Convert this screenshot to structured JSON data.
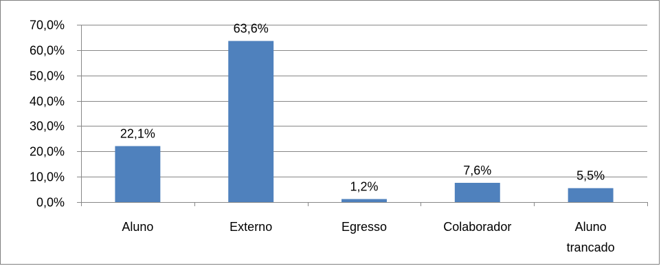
{
  "chart_data": {
    "type": "bar",
    "title": "",
    "xlabel": "",
    "ylabel": "",
    "categories": [
      "Aluno",
      "Externo",
      "Egresso",
      "Colaborador",
      "Aluno trancado"
    ],
    "values": [
      22.1,
      63.6,
      1.2,
      7.6,
      5.5
    ],
    "data_labels": [
      "22,1%",
      "63,6%",
      "1,2%",
      "7,6%",
      "5,5%"
    ],
    "y_tick_values": [
      0,
      10,
      20,
      30,
      40,
      50,
      60,
      70
    ],
    "y_tick_labels": [
      "0,0%",
      "10,0%",
      "20,0%",
      "30,0%",
      "40,0%",
      "50,0%",
      "60,0%",
      "70,0%"
    ],
    "ylim": [
      0,
      70
    ],
    "grid": true,
    "legend": "none",
    "bar_color": "#4f81bd"
  }
}
